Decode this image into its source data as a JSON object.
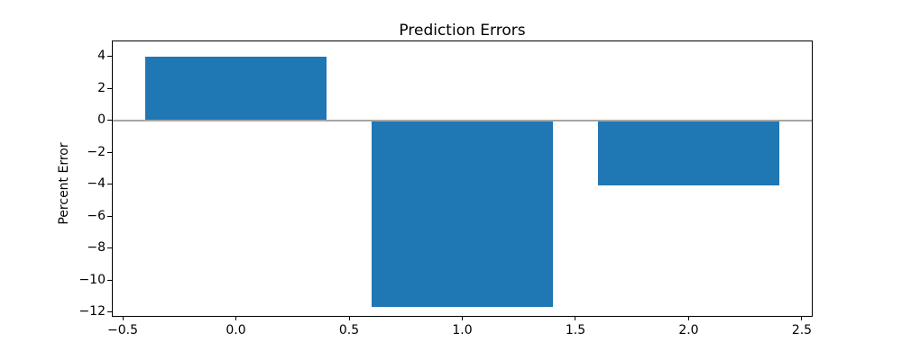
{
  "title": "Prediction Errors",
  "chart_data": {
    "type": "bar",
    "title": "Prediction Errors",
    "xlabel": "",
    "ylabel": "Percent Error",
    "x": [
      0,
      1,
      2
    ],
    "values": [
      4.0,
      -11.7,
      -4.1
    ],
    "bar_width": 0.8,
    "bar_color": "#1f77b4",
    "zero_line_color": "#a6a6a6",
    "xlim": [
      -0.544,
      2.544
    ],
    "ylim": [
      -12.24,
      4.93
    ],
    "xticks": [
      -0.5,
      0.0,
      0.5,
      1.0,
      1.5,
      2.0,
      2.5
    ],
    "xtick_labels": [
      "−0.5",
      "0.0",
      "0.5",
      "1.0",
      "1.5",
      "2.0",
      "2.5"
    ],
    "yticks": [
      4,
      2,
      0,
      -2,
      -4,
      -6,
      -8,
      -10,
      -12
    ],
    "ytick_labels": [
      "4",
      "2",
      "0",
      "−2",
      "−4",
      "−6",
      "−8",
      "−10",
      "−12"
    ],
    "grid": false,
    "legend": null
  }
}
